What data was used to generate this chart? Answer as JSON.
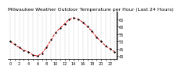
{
  "title": "Milwaukee Weather Outdoor Temperature per Hour (Last 24 Hours)",
  "hours": [
    0,
    1,
    2,
    3,
    4,
    5,
    6,
    7,
    8,
    9,
    10,
    11,
    12,
    13,
    14,
    15,
    16,
    17,
    18,
    19,
    20,
    21,
    22,
    23
  ],
  "temps": [
    50,
    48,
    46,
    44,
    43,
    41,
    40,
    42,
    46,
    51,
    56,
    59,
    62,
    65,
    66,
    65,
    63,
    60,
    57,
    53,
    50,
    47,
    45,
    43
  ],
  "line_color": "#dd0000",
  "marker_color": "#000000",
  "bg_color": "#ffffff",
  "grid_color": "#888888",
  "ylim": [
    38,
    70
  ],
  "yticks": [
    40,
    45,
    50,
    55,
    60,
    65
  ],
  "xlim": [
    -0.5,
    23.5
  ],
  "title_fontsize": 4.5,
  "tick_fontsize": 3.5
}
